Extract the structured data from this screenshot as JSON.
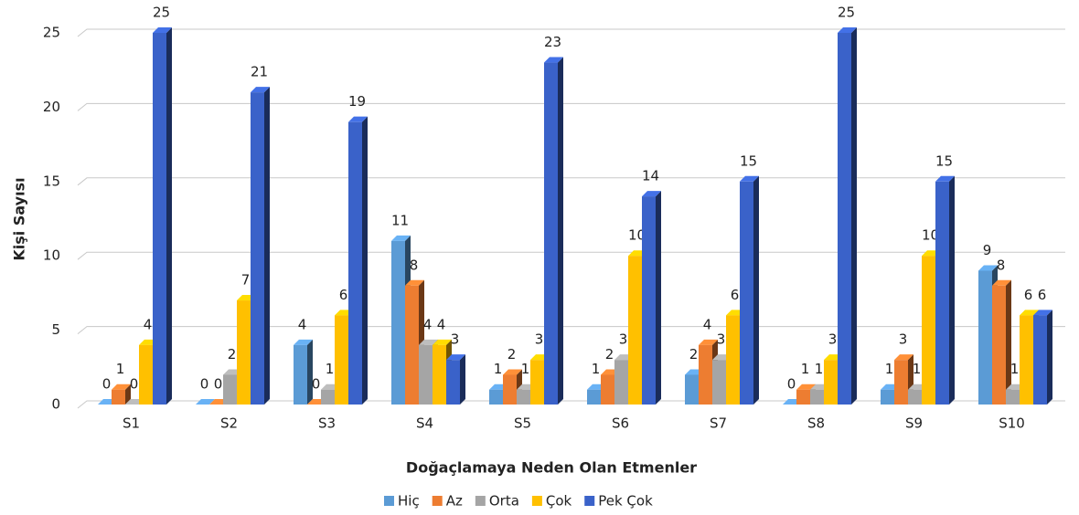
{
  "chart_data": {
    "type": "bar3d",
    "categories": [
      "S1",
      "S2",
      "S3",
      "S4",
      "S5",
      "S6",
      "S7",
      "S8",
      "S9",
      "S10"
    ],
    "series": [
      {
        "name": "Hiç",
        "color": "#5b9bd5",
        "values": [
          0,
          0,
          4,
          11,
          1,
          1,
          2,
          0,
          1,
          9
        ]
      },
      {
        "name": "Az",
        "color": "#ed7d31",
        "values": [
          1,
          0,
          0,
          8,
          2,
          2,
          4,
          1,
          3,
          8
        ]
      },
      {
        "name": "Orta",
        "color": "#a5a5a5",
        "values": [
          0,
          2,
          1,
          4,
          1,
          3,
          3,
          1,
          1,
          1
        ]
      },
      {
        "name": "Çok",
        "color": "#ffc000",
        "values": [
          4,
          7,
          6,
          4,
          3,
          10,
          6,
          3,
          10,
          6
        ]
      },
      {
        "name": "Pek Çok",
        "color": "#3a62c9",
        "values": [
          25,
          21,
          19,
          3,
          23,
          14,
          15,
          25,
          15,
          6
        ]
      }
    ],
    "x_label": "Doğaçlamaya Neden Olan Etmenler",
    "y_label": "Kişi Sayısı",
    "ylim": [
      0,
      25
    ],
    "yticks": [
      0,
      5,
      10,
      15,
      20,
      25
    ],
    "grid": true,
    "legend": "bottom"
  }
}
